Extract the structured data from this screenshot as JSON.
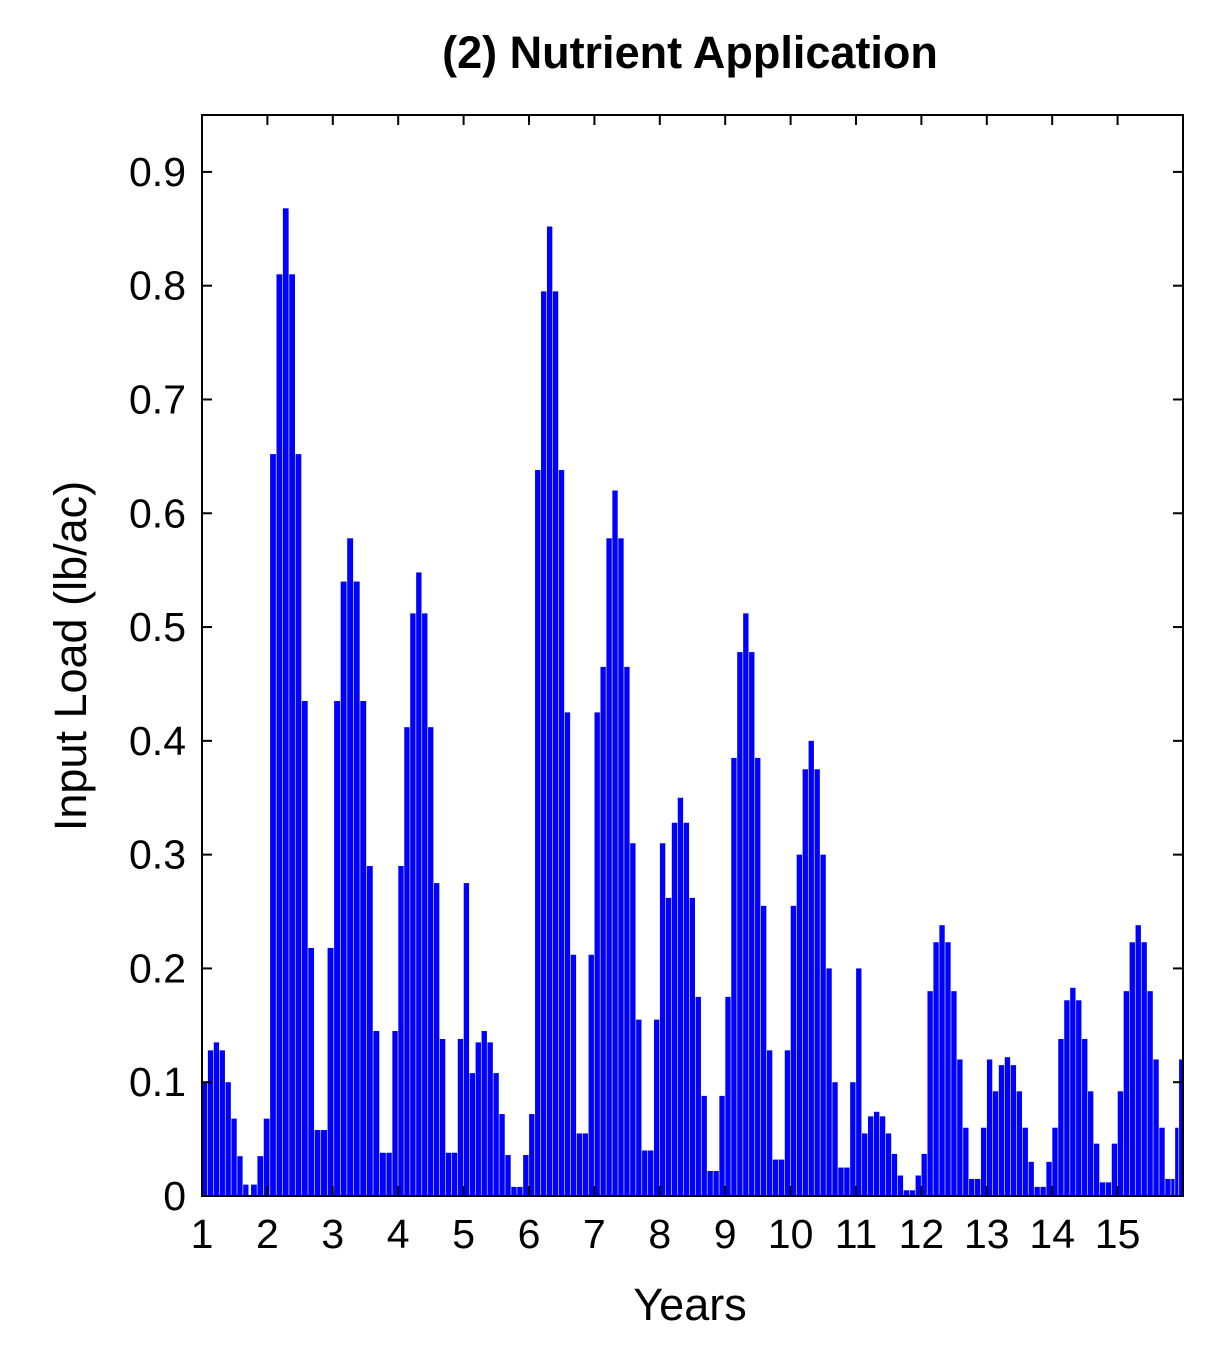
{
  "chart_data": {
    "type": "bar",
    "title": "(2) Nutrient Application",
    "xlabel": "Years",
    "ylabel": "Input Load (lb/ac)",
    "xlim": [
      1,
      16
    ],
    "ylim": [
      0,
      0.95
    ],
    "x_ticks": [
      1,
      2,
      3,
      4,
      5,
      6,
      7,
      8,
      9,
      10,
      11,
      12,
      13,
      14,
      15
    ],
    "x_tick_labels": [
      "1",
      "2",
      "3",
      "4",
      "5",
      "6",
      "7",
      "8",
      "9",
      "10",
      "11",
      "12",
      "13",
      "14",
      "15"
    ],
    "y_ticks": [
      0,
      0.1,
      0.2,
      0.3,
      0.4,
      0.5,
      0.6,
      0.7,
      0.8,
      0.9
    ],
    "y_tick_labels": [
      "0",
      "0.1",
      "0.2",
      "0.3",
      "0.4",
      "0.5",
      "0.6",
      "0.7",
      "0.8",
      "0.9"
    ],
    "grid": false,
    "bar_color": "#0000ff",
    "years": [
      {
        "start": 1.0,
        "end": 1.72,
        "values": [
          0.1,
          0.128,
          0.135,
          0.128,
          0.1,
          0.068,
          0.035,
          0.01
        ]
      },
      {
        "start": 1.75,
        "end": 2.82,
        "values": [
          0.01,
          0.035,
          0.068,
          0.652,
          0.81,
          0.868,
          0.81,
          0.652,
          0.435,
          0.218,
          0.058
        ]
      },
      {
        "start": 2.82,
        "end": 3.82,
        "values": [
          0.058,
          0.218,
          0.435,
          0.54,
          0.578,
          0.54,
          0.435,
          0.29,
          0.145,
          0.038
        ]
      },
      {
        "start": 3.82,
        "end": 4.82,
        "values": [
          0.038,
          0.145,
          0.29,
          0.412,
          0.512,
          0.548,
          0.512,
          0.412,
          0.275,
          0.138,
          0.038
        ]
      },
      {
        "start": 4.82,
        "end": 5.82,
        "values": [
          0.038,
          0.138,
          0.275,
          0.108,
          0.135,
          0.145,
          0.135,
          0.108,
          0.072,
          0.036,
          0.008
        ]
      },
      {
        "start": 5.82,
        "end": 6.82,
        "values": [
          0.008,
          0.036,
          0.072,
          0.638,
          0.795,
          0.852,
          0.795,
          0.638,
          0.425,
          0.212,
          0.055
        ]
      },
      {
        "start": 6.82,
        "end": 7.82,
        "values": [
          0.055,
          0.212,
          0.425,
          0.465,
          0.578,
          0.62,
          0.578,
          0.465,
          0.31,
          0.155,
          0.04
        ]
      },
      {
        "start": 7.82,
        "end": 8.82,
        "values": [
          0.04,
          0.155,
          0.31,
          0.262,
          0.328,
          0.35,
          0.328,
          0.262,
          0.175,
          0.088,
          0.022
        ]
      },
      {
        "start": 8.82,
        "end": 9.82,
        "values": [
          0.022,
          0.088,
          0.175,
          0.385,
          0.478,
          0.512,
          0.478,
          0.385,
          0.255,
          0.128,
          0.032
        ]
      },
      {
        "start": 9.82,
        "end": 10.82,
        "values": [
          0.032,
          0.128,
          0.255,
          0.3,
          0.375,
          0.4,
          0.375,
          0.3,
          0.2,
          0.1,
          0.025
        ]
      },
      {
        "start": 10.82,
        "end": 11.82,
        "values": [
          0.025,
          0.1,
          0.2,
          0.055,
          0.07,
          0.074,
          0.07,
          0.055,
          0.037,
          0.018,
          0.005
        ]
      },
      {
        "start": 11.82,
        "end": 12.82,
        "values": [
          0.005,
          0.018,
          0.037,
          0.18,
          0.223,
          0.238,
          0.223,
          0.18,
          0.12,
          0.06,
          0.015
        ]
      },
      {
        "start": 12.82,
        "end": 13.82,
        "values": [
          0.015,
          0.06,
          0.12,
          0.092,
          0.115,
          0.122,
          0.115,
          0.092,
          0.06,
          0.03,
          0.008
        ]
      },
      {
        "start": 13.82,
        "end": 14.82,
        "values": [
          0.008,
          0.03,
          0.06,
          0.138,
          0.172,
          0.183,
          0.172,
          0.138,
          0.092,
          0.046,
          0.012
        ]
      },
      {
        "start": 14.82,
        "end": 15.82,
        "values": [
          0.012,
          0.046,
          0.092,
          0.18,
          0.223,
          0.238,
          0.223,
          0.18,
          0.12,
          0.06,
          0.015
        ]
      },
      {
        "start": 15.82,
        "end": 16.0,
        "values": [
          0.015,
          0.06,
          0.12
        ]
      }
    ]
  }
}
